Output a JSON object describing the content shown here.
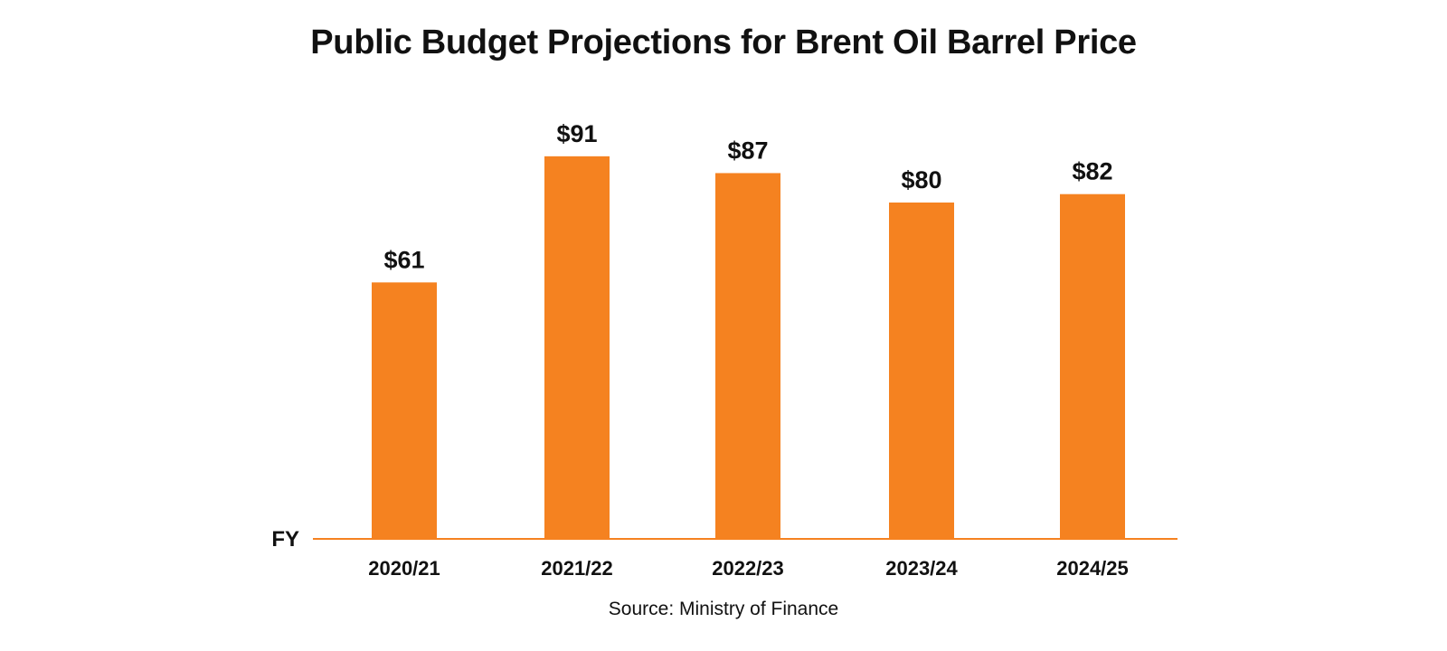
{
  "chart_data": {
    "type": "bar",
    "title": "Public Budget Projections for Brent Oil Barrel Price",
    "xlabel": "FY",
    "ylabel": "",
    "categories": [
      "2020/21",
      "2021/22",
      "2022/23",
      "2023/24",
      "2024/25"
    ],
    "values": [
      61,
      91,
      87,
      80,
      82
    ],
    "data_labels": [
      "$61",
      "$91",
      "$87",
      "$80",
      "$82"
    ],
    "ylim": [
      0,
      100
    ],
    "grid": false,
    "legend": "none",
    "bar_color": "#F58220",
    "axis_color": "#F58220"
  },
  "footer": {
    "source": "Source: Ministry of Finance"
  }
}
